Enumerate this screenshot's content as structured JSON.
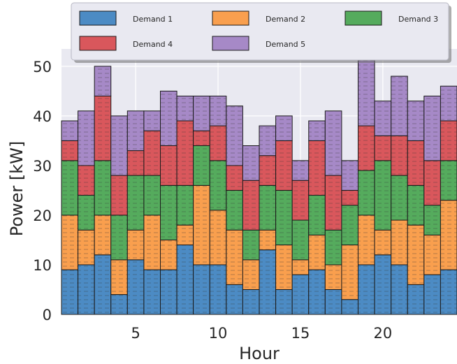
{
  "chart_data": {
    "type": "bar",
    "stacked": true,
    "title": "",
    "xlabel": "Hour",
    "ylabel": "Power [kW]",
    "x": [
      1,
      2,
      3,
      4,
      5,
      6,
      7,
      8,
      9,
      10,
      11,
      12,
      13,
      14,
      15,
      16,
      17,
      18,
      19,
      20,
      21,
      22,
      23,
      24
    ],
    "xticks": [
      5,
      10,
      15,
      20
    ],
    "yticks": [
      0,
      10,
      20,
      30,
      40,
      50
    ],
    "ylim": [
      0,
      53.5
    ],
    "grid": true,
    "legend_position": "top (above plot)",
    "series": [
      {
        "name": "Demand 1",
        "color": "#4c8bc4",
        "values": [
          9,
          10,
          12,
          4,
          11,
          9,
          9,
          14,
          10,
          10,
          6,
          5,
          13,
          5,
          8,
          9,
          5,
          3,
          10,
          12,
          10,
          6,
          8,
          9
        ]
      },
      {
        "name": "Demand 2",
        "color": "#f99f4e",
        "values": [
          11,
          7,
          8,
          7,
          6,
          11,
          6,
          4,
          16,
          11,
          11,
          6,
          4,
          9,
          3,
          7,
          5,
          11,
          10,
          5,
          9,
          12,
          8,
          14
        ]
      },
      {
        "name": "Demand 3",
        "color": "#55ab5d",
        "values": [
          11,
          7,
          11,
          9,
          11,
          8,
          11,
          8,
          8,
          10,
          8,
          6,
          9,
          11,
          8,
          8,
          7,
          8,
          9,
          14,
          9,
          8,
          6,
          8
        ]
      },
      {
        "name": "Demand 4",
        "color": "#d9575c",
        "values": [
          4,
          6,
          13,
          8,
          5,
          9,
          8,
          13,
          3,
          7,
          5,
          10,
          6,
          10,
          8,
          11,
          11,
          3,
          9,
          5,
          8,
          9,
          9,
          8
        ]
      },
      {
        "name": "Demand 5",
        "color": "#a689c7",
        "values": [
          4,
          11,
          6,
          12,
          8,
          4,
          11,
          5,
          7,
          6,
          12,
          7,
          6,
          5,
          4,
          4,
          13,
          6,
          14,
          7,
          12,
          8,
          13,
          7
        ]
      }
    ]
  }
}
